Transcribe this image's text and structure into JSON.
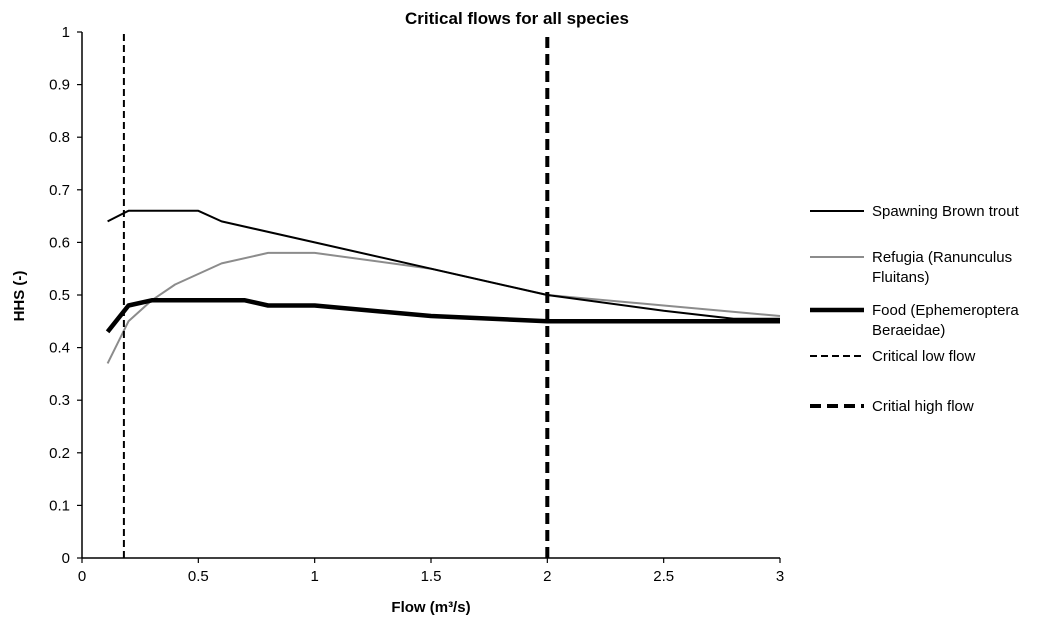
{
  "chart_data": {
    "type": "line",
    "title": "Critical flows for all species",
    "xlabel": "Flow (m³/s)",
    "ylabel": "HHS (-)",
    "xlim": [
      0,
      3
    ],
    "ylim": [
      0,
      1
    ],
    "x_ticks": [
      0,
      0.5,
      1,
      1.5,
      2,
      2.5,
      3
    ],
    "x_tick_labels": [
      "0",
      "0.5",
      "1",
      "1.5",
      "2",
      "2.5",
      "3"
    ],
    "y_ticks": [
      0,
      0.1,
      0.2,
      0.3,
      0.4,
      0.5,
      0.6,
      0.7,
      0.8,
      0.9,
      1
    ],
    "y_tick_labels": [
      "0",
      "0.1",
      "0.2",
      "0.3",
      "0.4",
      "0.5",
      "0.6",
      "0.7",
      "0.8",
      "0.9",
      "1"
    ],
    "grid": false,
    "legend_position": "right",
    "series": [
      {
        "name": "Spawning Brown trout",
        "legend_lines": [
          "Spawning Brown trout"
        ],
        "color": "#000000",
        "style": "solid",
        "weight": "normal",
        "x": [
          0.11,
          0.2,
          0.5,
          0.6,
          1.0,
          1.5,
          2.0,
          2.5,
          2.8,
          3.0
        ],
        "y": [
          0.64,
          0.66,
          0.66,
          0.64,
          0.6,
          0.55,
          0.5,
          0.47,
          0.455,
          0.455
        ]
      },
      {
        "name": "Refugia (Ranunculus Fluitans)",
        "legend_lines": [
          "Refugia (Ranunculus",
          "Fluitans)"
        ],
        "color": "#8c8c8c",
        "style": "solid",
        "weight": "normal",
        "x": [
          0.11,
          0.2,
          0.3,
          0.4,
          0.6,
          0.8,
          1.0,
          1.5,
          2.0,
          2.5,
          3.0
        ],
        "y": [
          0.37,
          0.45,
          0.49,
          0.52,
          0.56,
          0.58,
          0.58,
          0.55,
          0.5,
          0.48,
          0.46
        ]
      },
      {
        "name": "Food (Ephemeroptera Beraeidae)",
        "legend_lines": [
          "Food (Ephemeroptera",
          "Beraeidae)"
        ],
        "color": "#000000",
        "style": "solid",
        "weight": "bold",
        "x": [
          0.11,
          0.2,
          0.3,
          0.5,
          0.7,
          0.8,
          1.0,
          1.5,
          2.0,
          2.5,
          3.0
        ],
        "y": [
          0.43,
          0.48,
          0.49,
          0.49,
          0.49,
          0.48,
          0.48,
          0.46,
          0.45,
          0.45,
          0.45
        ]
      },
      {
        "name": "Critical low flow",
        "legend_lines": [
          "Critical low flow"
        ],
        "color": "#000000",
        "style": "dashed",
        "weight": "normal",
        "x": [
          0.18,
          0.18
        ],
        "y": [
          0,
          1
        ]
      },
      {
        "name": "Critial high flow",
        "legend_lines": [
          "Critial high flow"
        ],
        "color": "#000000",
        "style": "dashed",
        "weight": "bold",
        "x": [
          2.0,
          2.0
        ],
        "y": [
          0,
          1
        ]
      }
    ]
  }
}
